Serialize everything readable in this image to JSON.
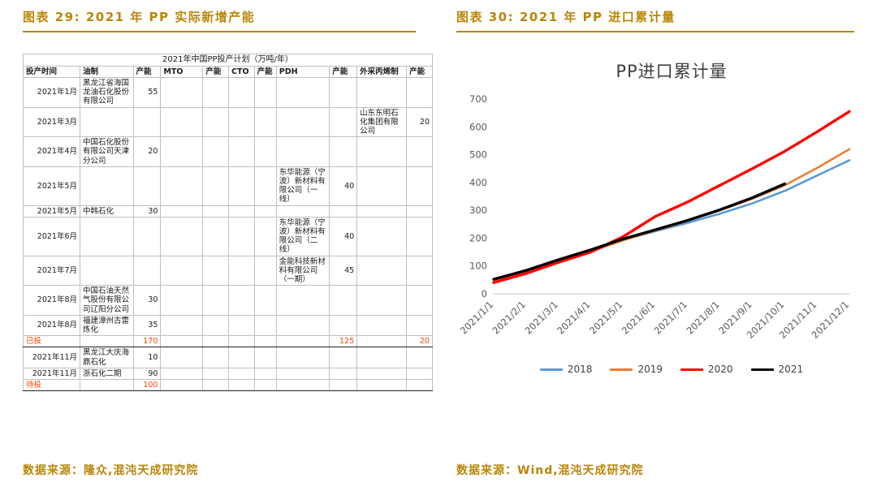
{
  "left": {
    "title": "图表 29: 2021 年 PP 实际新增产能",
    "source": "数据来源：隆众,混沌天成研究院",
    "table": {
      "caption": "2021年中国PP投产计划（万吨/年）",
      "header": [
        "投产时间",
        "油制",
        "产能",
        "MTO",
        "产能",
        "CTO",
        "产能",
        "PDH",
        "产能",
        "外采丙烯制",
        "产能"
      ],
      "rows": [
        {
          "type": "data",
          "cells": [
            "2021年1月",
            "黑龙江省海国龙油石化股份有限公司",
            "55",
            "",
            "",
            "",
            "",
            "",
            "",
            "",
            ""
          ]
        },
        {
          "type": "data",
          "cells": [
            "2021年3月",
            "",
            "",
            "",
            "",
            "",
            "",
            "",
            "",
            "山东东明石化集团有限公司",
            "20"
          ]
        },
        {
          "type": "data",
          "cells": [
            "2021年4月",
            "中国石化股份有限公司天津分公司",
            "20",
            "",
            "",
            "",
            "",
            "",
            "",
            "",
            ""
          ]
        },
        {
          "type": "data",
          "cells": [
            "2021年5月",
            "",
            "",
            "",
            "",
            "",
            "",
            "东华能源（宁波）新材料有限公司（一线）",
            "40",
            "",
            ""
          ]
        },
        {
          "type": "data",
          "cells": [
            "2021年5月",
            "中韩石化",
            "30",
            "",
            "",
            "",
            "",
            "",
            "",
            "",
            ""
          ]
        },
        {
          "type": "data",
          "cells": [
            "2021年6月",
            "",
            "",
            "",
            "",
            "",
            "",
            "东华能源（宁波）新材料有限公司（二线）",
            "40",
            "",
            ""
          ]
        },
        {
          "type": "data",
          "cells": [
            "2021年7月",
            "",
            "",
            "",
            "",
            "",
            "",
            "金能科技新材料有限公司（一期）",
            "45",
            "",
            ""
          ]
        },
        {
          "type": "data",
          "cells": [
            "2021年8月",
            "中国石油天然气股份有限公司辽阳分公司",
            "30",
            "",
            "",
            "",
            "",
            "",
            "",
            "",
            ""
          ]
        },
        {
          "type": "data",
          "cells": [
            "2021年8月",
            "福建漳州古雷炼化",
            "35",
            "",
            "",
            "",
            "",
            "",
            "",
            "",
            ""
          ]
        },
        {
          "type": "summary",
          "cells": [
            "已投",
            "",
            "170",
            "",
            "",
            "",
            "",
            "",
            "125",
            "",
            "20"
          ]
        },
        {
          "type": "data",
          "cells": [
            "2021年11月",
            "黑龙江大庆海鼎石化",
            "10",
            "",
            "",
            "",
            "",
            "",
            "",
            "",
            ""
          ]
        },
        {
          "type": "data",
          "cells": [
            "2021年11月",
            "浙石化二期",
            "90",
            "",
            "",
            "",
            "",
            "",
            "",
            "",
            ""
          ]
        },
        {
          "type": "summary",
          "cells": [
            "待投",
            "",
            "100",
            "",
            "",
            "",
            "",
            "",
            "",
            "",
            ""
          ]
        }
      ]
    }
  },
  "right": {
    "title": "图表 30: 2021 年 PP 进口累计量",
    "source": "数据来源：Wind,混沌天成研究院"
  },
  "chart_data": {
    "type": "line",
    "title": "PP进口累计量",
    "x": [
      "2021/1/1",
      "2021/2/1",
      "2021/3/1",
      "2021/4/1",
      "2021/5/1",
      "2021/6/1",
      "2021/7/1",
      "2021/8/1",
      "2021/9/1",
      "2021/10/1",
      "2021/11/1",
      "2021/12/1"
    ],
    "ylim": [
      0,
      700
    ],
    "ytick_step": 100,
    "grid": false,
    "legend_position": "bottom",
    "series": [
      {
        "name": "2018",
        "color": "#5B9BD5",
        "width": 2.6,
        "values": [
          50,
          80,
          120,
          155,
          193,
          225,
          255,
          288,
          325,
          370,
          425,
          480
        ]
      },
      {
        "name": "2019",
        "color": "#ED7D31",
        "width": 2.6,
        "values": [
          48,
          78,
          118,
          152,
          192,
          228,
          262,
          300,
          342,
          390,
          452,
          520
        ]
      },
      {
        "name": "2020",
        "color": "#FF0000",
        "width": 3.4,
        "values": [
          40,
          73,
          113,
          150,
          205,
          278,
          330,
          390,
          450,
          512,
          582,
          655
        ]
      },
      {
        "name": "2021",
        "color": "#000000",
        "width": 3.4,
        "values": [
          52,
          84,
          122,
          158,
          197,
          230,
          264,
          302,
          345,
          395,
          null,
          null
        ]
      }
    ]
  },
  "colors": {
    "accent_gold": "#B8860B",
    "summary_red": "#FF4500"
  }
}
